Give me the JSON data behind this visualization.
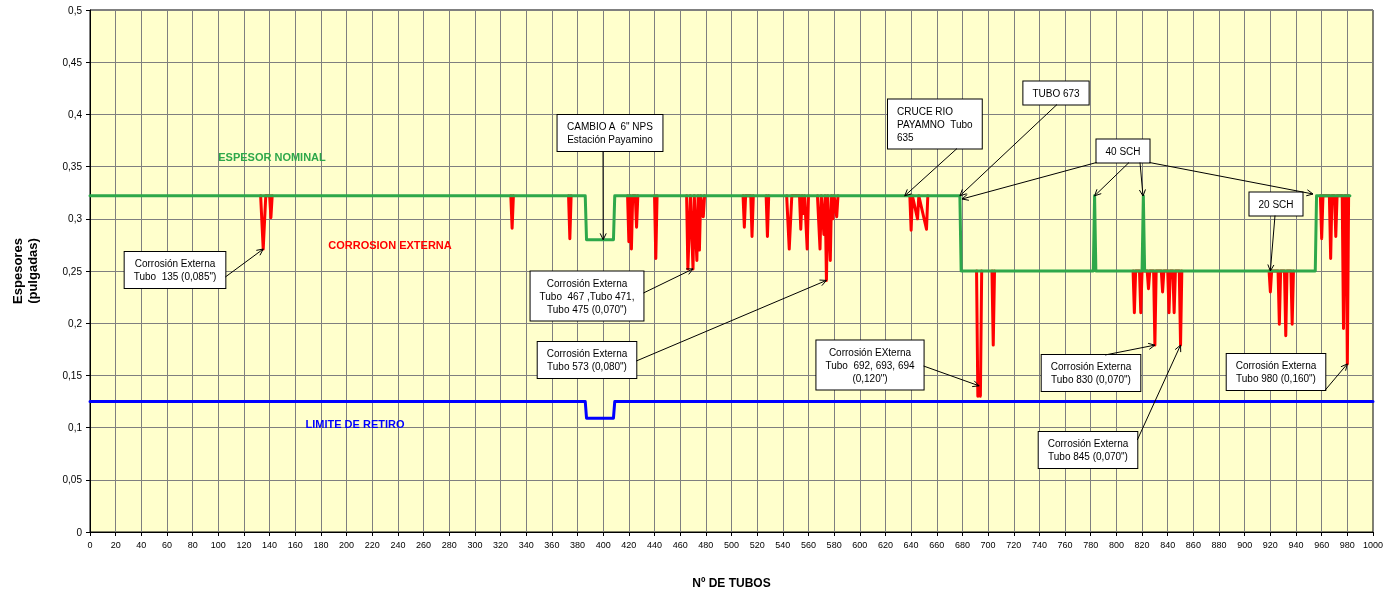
{
  "chart_data": {
    "type": "line",
    "xlabel": "Nº DE TUBOS",
    "ylabel": "Espesores\n(pulgadas)",
    "xlim": [
      0,
      1000
    ],
    "xticks": [
      0,
      20,
      40,
      60,
      80,
      100,
      120,
      140,
      160,
      180,
      200,
      220,
      240,
      260,
      280,
      300,
      320,
      340,
      360,
      380,
      400,
      420,
      440,
      460,
      480,
      500,
      520,
      540,
      560,
      580,
      600,
      620,
      640,
      660,
      680,
      700,
      720,
      740,
      760,
      780,
      800,
      820,
      840,
      860,
      880,
      900,
      920,
      940,
      960,
      980,
      1000
    ],
    "ylim": [
      0,
      0.5
    ],
    "yticks": [
      0,
      {
        "value": 0.05,
        "label": "0,05"
      },
      {
        "value": 0.1,
        "label": "0,1"
      },
      {
        "value": 0.15,
        "label": "0,15"
      },
      {
        "value": 0.2,
        "label": "0,2"
      },
      {
        "value": 0.25,
        "label": "0,25"
      },
      {
        "value": 0.3,
        "label": "0,3"
      },
      {
        "value": 0.35,
        "label": "0,35"
      },
      {
        "value": 0.4,
        "label": "0,4"
      },
      {
        "value": 0.45,
        "label": "0,45"
      },
      {
        "value": 0.5,
        "label": "0,5"
      }
    ],
    "grid": true,
    "legend": false,
    "marker": "none",
    "line_style": "solid",
    "series": [
      {
        "name": "CORROSION EXTERNA",
        "color": "#ff0000",
        "x": [
          133,
          135,
          137,
          140,
          141,
          142,
          143,
          328,
          329,
          330,
          331,
          373,
          374,
          375,
          376,
          419,
          420,
          421,
          422,
          423,
          425,
          426,
          427,
          428,
          440,
          441,
          442,
          443,
          465,
          466,
          468,
          470,
          471,
          473,
          474,
          475,
          476,
          478,
          479,
          480,
          509,
          510,
          511,
          515,
          516,
          517,
          518,
          527,
          528,
          529,
          530,
          543,
          545,
          547,
          553,
          554,
          555,
          556,
          557,
          559,
          560,
          561,
          567,
          569,
          570,
          572,
          573,
          574,
          575,
          577,
          578,
          579,
          580,
          582,
          583,
          584,
          639,
          640,
          641,
          645,
          646,
          652,
          653,
          654,
          691,
          692,
          693,
          694,
          695,
          696,
          703,
          704,
          705,
          706,
          813,
          814,
          815,
          818,
          819,
          820,
          824,
          825,
          826,
          829,
          830,
          831,
          835,
          836,
          837,
          840,
          841,
          842,
          844,
          845,
          846,
          849,
          850,
          851,
          852,
          919,
          920,
          921,
          926,
          927,
          928,
          931,
          932,
          933,
          936,
          937,
          938,
          939,
          959,
          960,
          961,
          966,
          967,
          968,
          970,
          971,
          972,
          976,
          977,
          978,
          979,
          980,
          981
        ],
        "values": [
          0.322,
          0.271,
          0.322,
          0.322,
          0.301,
          0.322,
          null,
          0.322,
          0.291,
          0.322,
          null,
          0.322,
          0.281,
          0.322,
          null,
          0.322,
          0.278,
          0.322,
          0.271,
          0.322,
          0.322,
          0.292,
          0.322,
          null,
          0.322,
          0.262,
          0.322,
          null,
          0.322,
          0.252,
          0.322,
          0.252,
          0.322,
          0.26,
          0.322,
          0.27,
          0.322,
          0.302,
          0.322,
          null,
          0.322,
          0.292,
          0.322,
          0.322,
          0.283,
          0.322,
          null,
          0.322,
          0.283,
          0.322,
          null,
          0.322,
          0.271,
          0.322,
          0.322,
          0.29,
          0.322,
          0.305,
          0.322,
          0.271,
          0.322,
          null,
          0.322,
          0.271,
          0.322,
          0.285,
          0.322,
          0.241,
          0.322,
          0.26,
          0.322,
          0.3,
          0.322,
          0.302,
          0.322,
          null,
          0.322,
          0.289,
          0.322,
          0.3,
          0.322,
          0.29,
          0.322,
          null,
          0.25,
          0.13,
          0.14,
          0.13,
          0.25,
          null,
          0.25,
          0.179,
          0.25,
          null,
          0.25,
          0.21,
          0.25,
          0.25,
          0.21,
          0.25,
          0.25,
          0.233,
          0.25,
          0.25,
          0.179,
          0.25,
          0.25,
          0.23,
          0.25,
          0.25,
          0.21,
          0.25,
          0.25,
          0.21,
          0.25,
          0.25,
          0.179,
          0.25,
          null,
          0.25,
          0.23,
          0.25,
          0.25,
          0.199,
          0.25,
          0.25,
          0.188,
          0.25,
          0.25,
          0.199,
          0.25,
          null,
          0.322,
          0.281,
          0.322,
          0.322,
          0.262,
          0.322,
          0.322,
          0.283,
          0.322,
          0.322,
          0.195,
          0.322,
          0.322,
          0.161,
          0.322
        ]
      },
      {
        "name": "ESPESOR NOMINAL",
        "color": "#2ea84a",
        "x": [
          0,
          386,
          387,
          408,
          409,
          678,
          679,
          782,
          783,
          784,
          820,
          821,
          822,
          955,
          956,
          982
        ],
        "values": [
          0.322,
          0.322,
          0.28,
          0.28,
          0.322,
          0.322,
          0.25,
          0.25,
          0.322,
          0.25,
          0.25,
          0.322,
          0.25,
          0.25,
          0.322,
          0.322
        ]
      },
      {
        "name": "LIMITE DE RETIRO",
        "color": "#0000ff",
        "x": [
          0,
          386,
          387,
          408,
          409,
          1000
        ],
        "values": [
          0.125,
          0.125,
          0.109,
          0.109,
          0.125,
          0.125
        ]
      }
    ],
    "annotations": [
      {
        "text": "Corrosión Externa\nTubo  135 (0,085\")",
        "x": 135,
        "y": 0.271
      },
      {
        "text": "CAMBIO A  6\" NPS\nEstación Payamino",
        "x": 400,
        "y": 0.28
      },
      {
        "text": "Corrosión Externa\nTubo  467 ,Tubo 471,\nTubo 475 (0,070\")",
        "x": 470,
        "y": 0.252
      },
      {
        "text": "Corrosión Externa\nTubo 573 (0,080\")",
        "x": 574,
        "y": 0.241
      },
      {
        "text": "CRUCE RIO\nPAYAMNO  Tubo\n635",
        "x": 635,
        "y": 0.322
      },
      {
        "text": "TUBO 673",
        "x": 678,
        "y": 0.322
      },
      {
        "text": "40 SCH",
        "x": 783,
        "y": 0.322
      },
      {
        "text": "20 SCH",
        "x": 920,
        "y": 0.25
      },
      {
        "text": "Corrosión EXterna\nTubo  692, 693, 694\n(0,120\")",
        "x": 693,
        "y": 0.14
      },
      {
        "text": "Corrosión Externa\nTubo 830 (0,070\")",
        "x": 830,
        "y": 0.179
      },
      {
        "text": "Corrosión Externa\nTubo 845 (0,070\")",
        "x": 850,
        "y": 0.179
      },
      {
        "text": "Corrosión Externa\nTubo 980 (0,160\")",
        "x": 980,
        "y": 0.161
      }
    ]
  }
}
